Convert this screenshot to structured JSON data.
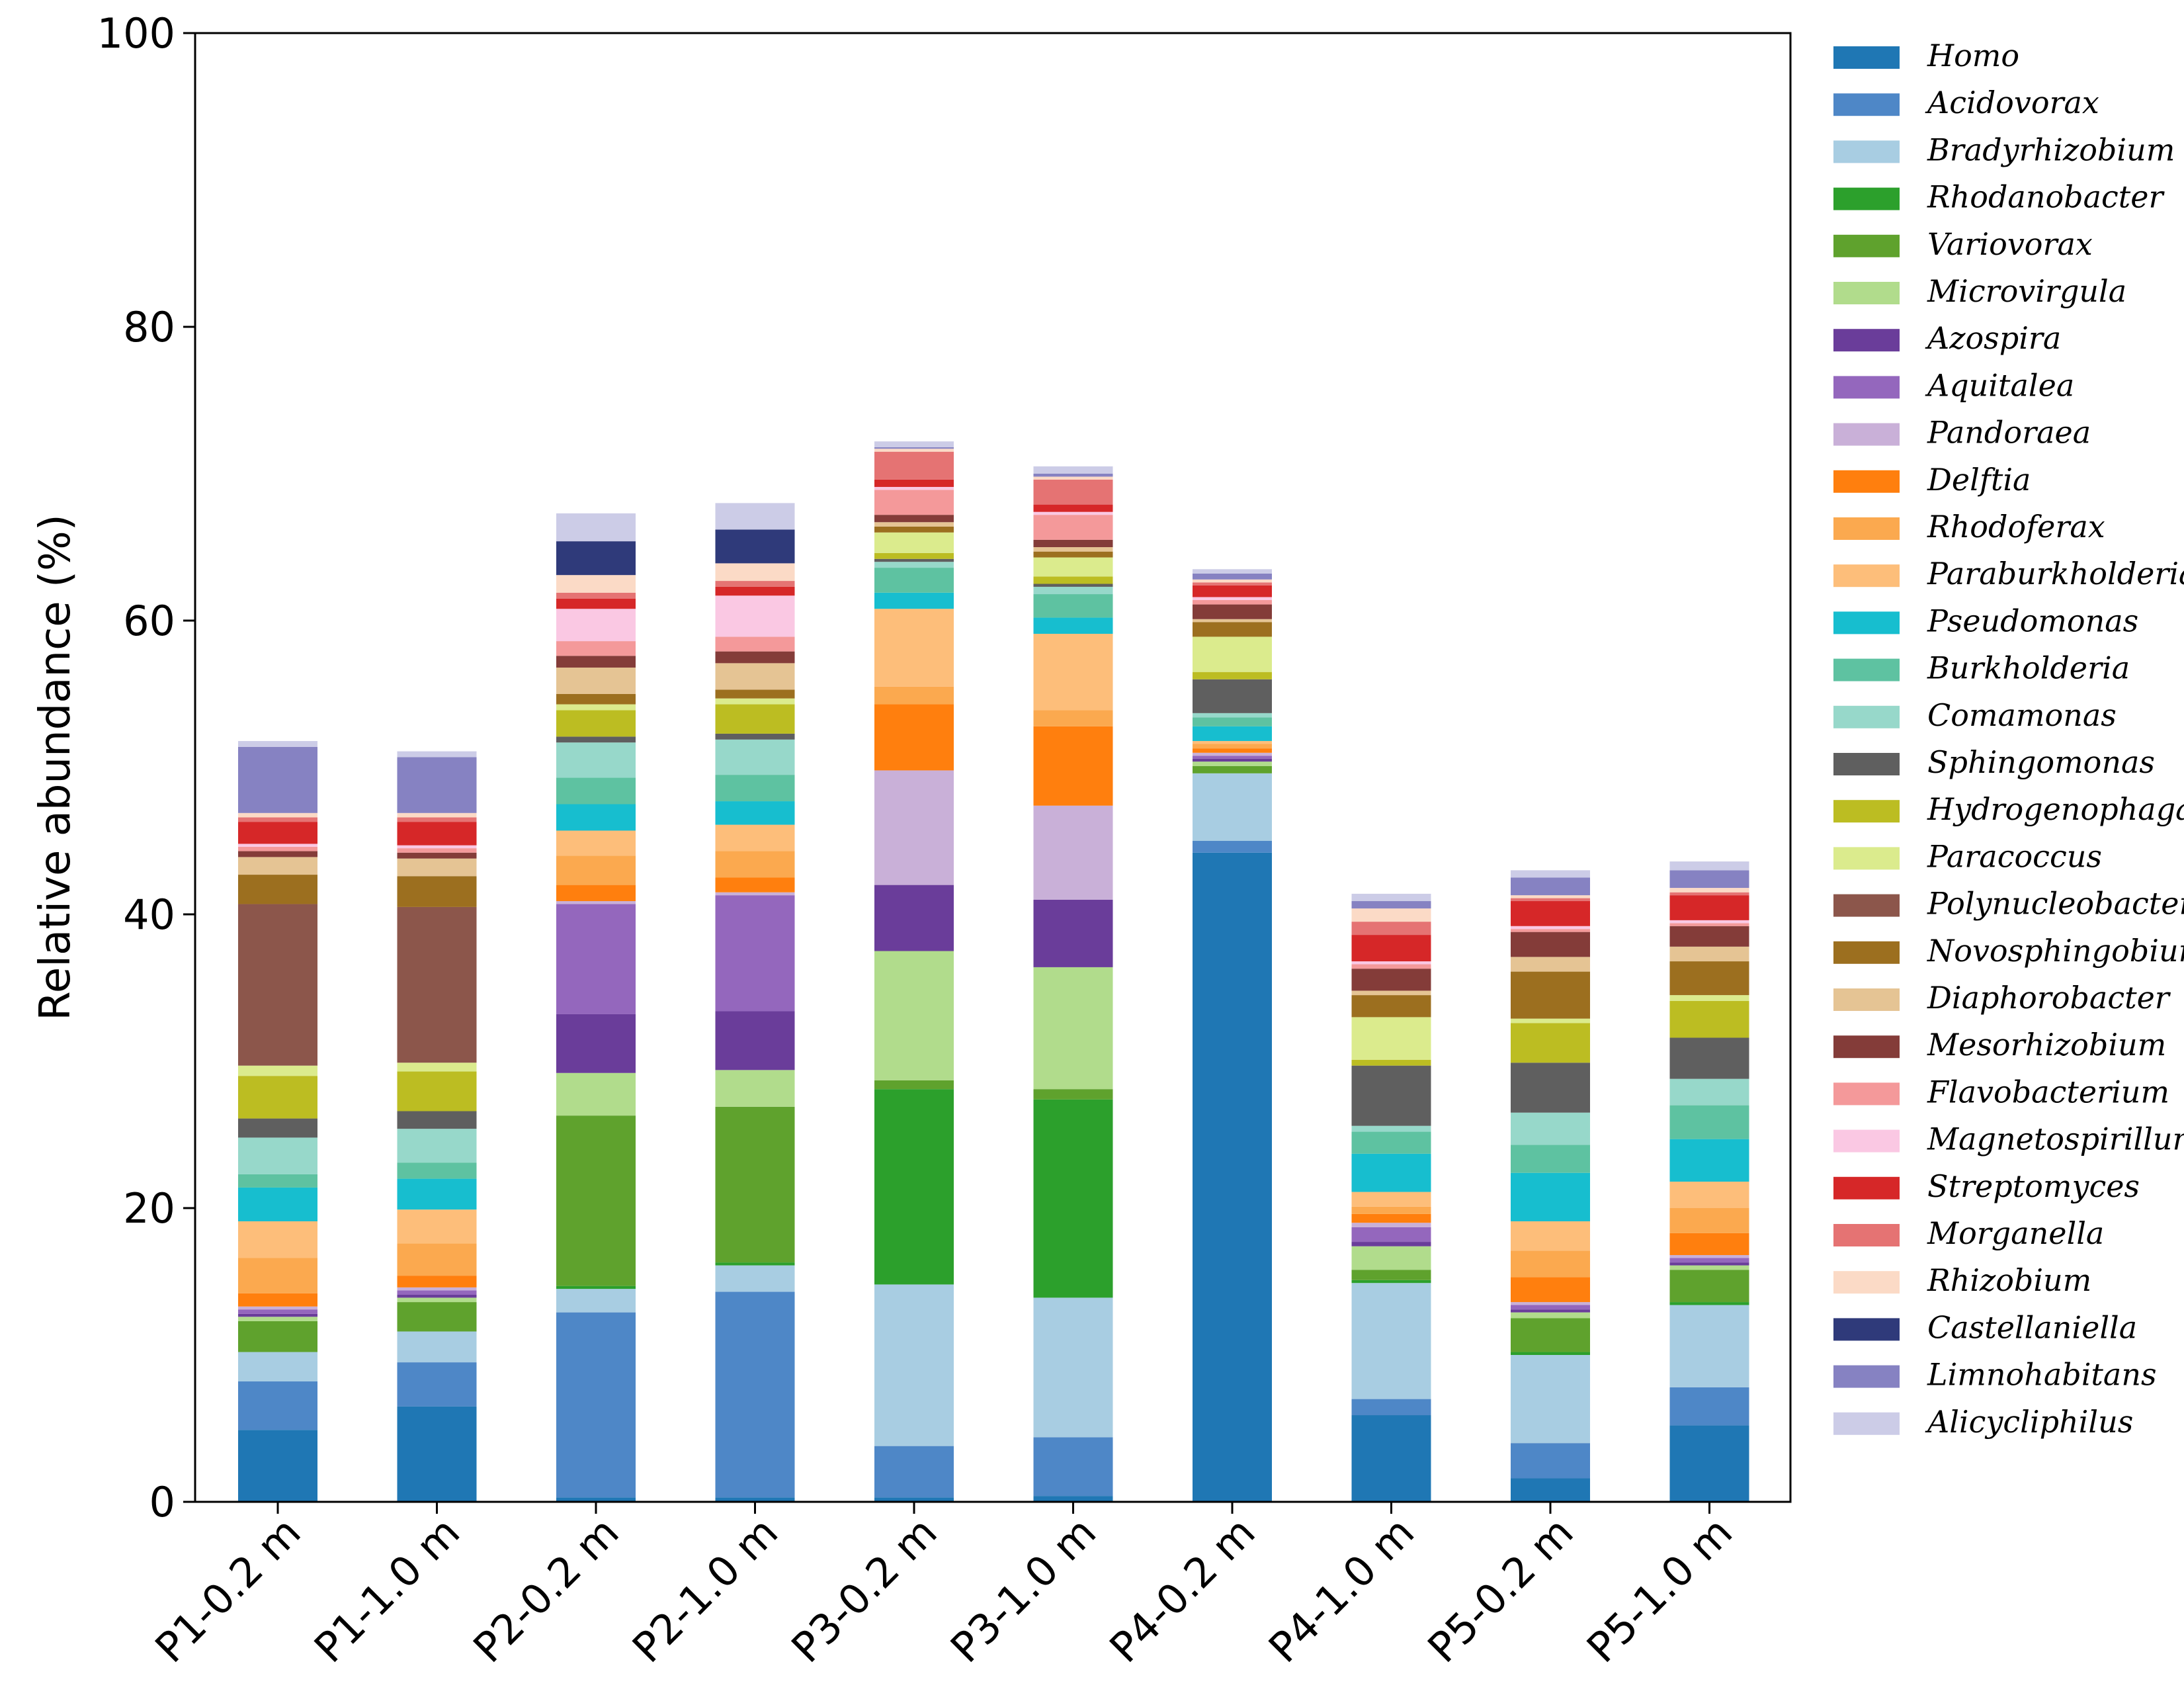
{
  "chart_data": {
    "type": "bar",
    "stacked": true,
    "title": "",
    "xlabel": "",
    "ylabel": "Relative abundance (%)",
    "ylim": [
      0,
      100
    ],
    "yticks": [
      "0",
      "20",
      "40",
      "60",
      "80",
      "100"
    ],
    "ytick_values": [
      0,
      20,
      40,
      60,
      80,
      100
    ],
    "legend_position": "right",
    "categories": [
      "P1-0.2 m",
      "P1-1.0 m",
      "P2-0.2 m",
      "P2-1.0 m",
      "P3-0.2 m",
      "P3-1.0 m",
      "P4-0.2 m",
      "P4-1.0 m",
      "P5-0.2 m",
      "P5-1.0 m"
    ],
    "series": [
      {
        "name": "Homo",
        "color": "#1f77b4",
        "values": [
          4.9,
          6.5,
          0.3,
          0.3,
          0.3,
          0.4,
          44.2,
          5.9,
          1.6,
          5.2
        ]
      },
      {
        "name": "Acidovorax",
        "color": "#4e87c7",
        "values": [
          3.3,
          3.0,
          12.6,
          14.0,
          3.5,
          4.0,
          0.8,
          1.1,
          2.4,
          2.6
        ]
      },
      {
        "name": "Bradyrhizobium",
        "color": "#a8cde2",
        "values": [
          2.0,
          2.1,
          1.6,
          1.8,
          11.0,
          9.5,
          4.6,
          7.9,
          6.0,
          5.6
        ]
      },
      {
        "name": "Rhodanobacter",
        "color": "#2ca02c",
        "values": [
          0.0,
          0.0,
          0.2,
          0.2,
          13.3,
          13.5,
          0.0,
          0.2,
          0.2,
          0.2
        ]
      },
      {
        "name": "Variovorax",
        "color": "#5fa22d",
        "values": [
          2.1,
          2.0,
          11.6,
          10.6,
          0.6,
          0.7,
          0.5,
          0.7,
          2.3,
          2.2
        ]
      },
      {
        "name": "Microvirgula",
        "color": "#b1dc8c",
        "values": [
          0.3,
          0.3,
          2.9,
          2.5,
          8.8,
          8.3,
          0.3,
          1.6,
          0.4,
          0.3
        ]
      },
      {
        "name": "Azospira",
        "color": "#6a3d9a",
        "values": [
          0.2,
          0.2,
          4.0,
          4.0,
          4.5,
          4.6,
          0.2,
          0.3,
          0.2,
          0.2
        ]
      },
      {
        "name": "Aquitalea",
        "color": "#9467bd",
        "values": [
          0.3,
          0.3,
          7.5,
          7.9,
          0.0,
          0.0,
          0.2,
          1.0,
          0.3,
          0.3
        ]
      },
      {
        "name": "Pandoraea",
        "color": "#c9b0d8",
        "values": [
          0.2,
          0.2,
          0.2,
          0.2,
          7.8,
          6.4,
          0.2,
          0.3,
          0.2,
          0.2
        ]
      },
      {
        "name": "Delftia",
        "color": "#ff7f0e",
        "values": [
          0.9,
          0.8,
          1.1,
          1.0,
          4.5,
          5.4,
          0.3,
          0.6,
          1.7,
          1.5
        ]
      },
      {
        "name": "Rhodoferax",
        "color": "#fba94f",
        "values": [
          2.4,
          2.2,
          2.0,
          1.8,
          1.2,
          1.1,
          0.3,
          0.5,
          1.8,
          1.7
        ]
      },
      {
        "name": "Paraburkholderia",
        "color": "#fdbe7a",
        "values": [
          2.5,
          2.3,
          1.7,
          1.8,
          5.3,
          5.2,
          0.2,
          1.0,
          2.0,
          1.8
        ]
      },
      {
        "name": "Pseudomonas",
        "color": "#17becf",
        "values": [
          2.3,
          2.1,
          1.8,
          1.6,
          1.1,
          1.1,
          1.0,
          2.6,
          3.3,
          2.9
        ]
      },
      {
        "name": "Burkholderia",
        "color": "#5ec2a1",
        "values": [
          0.9,
          1.1,
          1.8,
          1.8,
          1.7,
          1.6,
          0.6,
          1.5,
          1.9,
          2.3
        ]
      },
      {
        "name": "Comamonas",
        "color": "#97d8ca",
        "values": [
          2.5,
          2.3,
          2.4,
          2.4,
          0.4,
          0.5,
          0.3,
          0.4,
          2.2,
          1.8
        ]
      },
      {
        "name": "Sphingomonas",
        "color": "#5f5f5f",
        "values": [
          1.3,
          1.2,
          0.4,
          0.4,
          0.2,
          0.2,
          2.3,
          4.1,
          3.4,
          2.8
        ]
      },
      {
        "name": "Hydrogenophaga",
        "color": "#bcbd22",
        "values": [
          2.9,
          2.7,
          1.8,
          2.0,
          0.4,
          0.5,
          0.5,
          0.4,
          2.7,
          2.5
        ]
      },
      {
        "name": "Paracoccus",
        "color": "#dbeb8d",
        "values": [
          0.7,
          0.6,
          0.4,
          0.4,
          1.4,
          1.3,
          2.4,
          2.9,
          0.3,
          0.4
        ]
      },
      {
        "name": "Polynucleobacter",
        "color": "#8c564b",
        "values": [
          11.0,
          10.6,
          0.0,
          0.0,
          0.0,
          0.0,
          0.0,
          0.0,
          0.0,
          0.0
        ]
      },
      {
        "name": "Novosphingobium",
        "color": "#9c6f1f",
        "values": [
          2.0,
          2.1,
          0.7,
          0.6,
          0.4,
          0.4,
          1.0,
          1.5,
          3.2,
          2.3
        ]
      },
      {
        "name": "Diaphorobacter",
        "color": "#e5c494",
        "values": [
          1.2,
          1.2,
          1.8,
          1.8,
          0.3,
          0.3,
          0.2,
          0.3,
          1.0,
          1.0
        ]
      },
      {
        "name": "Mesorhizobium",
        "color": "#843c39",
        "values": [
          0.4,
          0.4,
          0.8,
          0.8,
          0.5,
          0.5,
          1.0,
          1.5,
          1.7,
          1.4
        ]
      },
      {
        "name": "Flavobacterium",
        "color": "#f4999a",
        "values": [
          0.3,
          0.3,
          1.0,
          1.0,
          1.7,
          1.7,
          0.3,
          0.3,
          0.2,
          0.2
        ]
      },
      {
        "name": "Magnetospirillum",
        "color": "#fac8e3",
        "values": [
          0.2,
          0.2,
          2.2,
          2.8,
          0.2,
          0.2,
          0.2,
          0.2,
          0.2,
          0.2
        ]
      },
      {
        "name": "Streptomyces",
        "color": "#d62728",
        "values": [
          1.5,
          1.6,
          0.7,
          0.6,
          0.5,
          0.5,
          0.8,
          1.8,
          1.7,
          1.7
        ]
      },
      {
        "name": "Morganella",
        "color": "#e57373",
        "values": [
          0.3,
          0.3,
          0.4,
          0.4,
          1.9,
          1.7,
          0.2,
          0.9,
          0.2,
          0.2
        ]
      },
      {
        "name": "Rhizobium",
        "color": "#fbdac6",
        "values": [
          0.3,
          0.3,
          1.2,
          1.2,
          0.2,
          0.2,
          0.2,
          0.9,
          0.2,
          0.3
        ]
      },
      {
        "name": "Castellaniella",
        "color": "#2f3a7a",
        "values": [
          0.0,
          0.0,
          2.3,
          2.3,
          0.0,
          0.0,
          0.0,
          0.0,
          0.0,
          0.0
        ]
      },
      {
        "name": "Limnohabitans",
        "color": "#8682c2",
        "values": [
          4.5,
          3.8,
          0.0,
          0.0,
          0.1,
          0.2,
          0.4,
          0.5,
          1.2,
          1.2
        ]
      },
      {
        "name": "Alicycliphilus",
        "color": "#cccce7",
        "values": [
          0.4,
          0.4,
          1.9,
          1.8,
          0.4,
          0.5,
          0.3,
          0.5,
          0.5,
          0.6
        ]
      }
    ]
  }
}
